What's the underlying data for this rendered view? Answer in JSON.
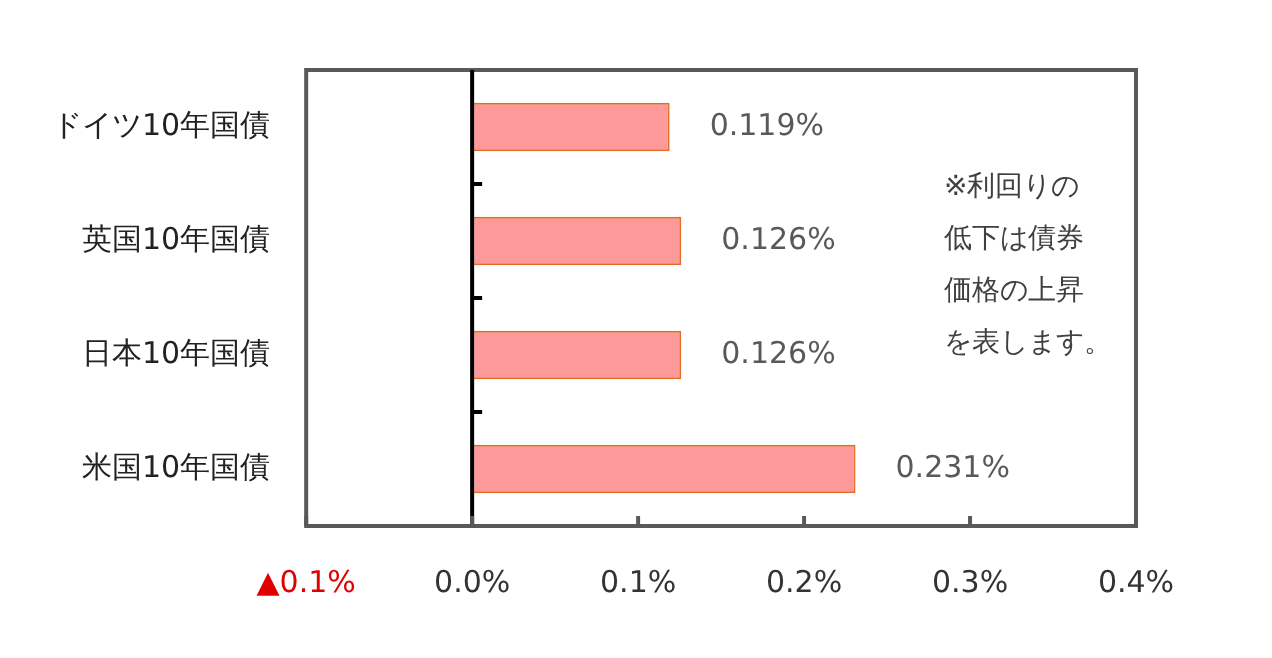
{
  "chart_data": {
    "type": "bar",
    "orientation": "horizontal",
    "categories": [
      "ドイツ10年国債",
      "英国10年国債",
      "日本10年国債",
      "米国10年国債"
    ],
    "values": [
      0.119,
      0.126,
      0.126,
      0.231
    ],
    "color": "#ff9999",
    "value_labels": [
      "0.119%",
      "0.126%",
      "0.126%",
      "0.231%"
    ],
    "xlim": [
      -0.1,
      0.4
    ],
    "xticks": [
      {
        "value": -0.1,
        "label": "▲0.1%"
      },
      {
        "value": 0,
        "label": "0.0%"
      },
      {
        "value": 0.1,
        "label": "0.1%"
      },
      {
        "value": 0.2,
        "label": "0.2%"
      },
      {
        "value": 0.3,
        "label": "0.3%"
      },
      {
        "value": 0.4,
        "label": "0.4%"
      }
    ],
    "annotations": [
      "※利回りの低下は債券価格の上昇を表します。"
    ],
    "ref_lines": [
      {
        "axis": "x",
        "value": 0,
        "color": "#000000"
      }
    ],
    "grid": false,
    "legend": false
  }
}
